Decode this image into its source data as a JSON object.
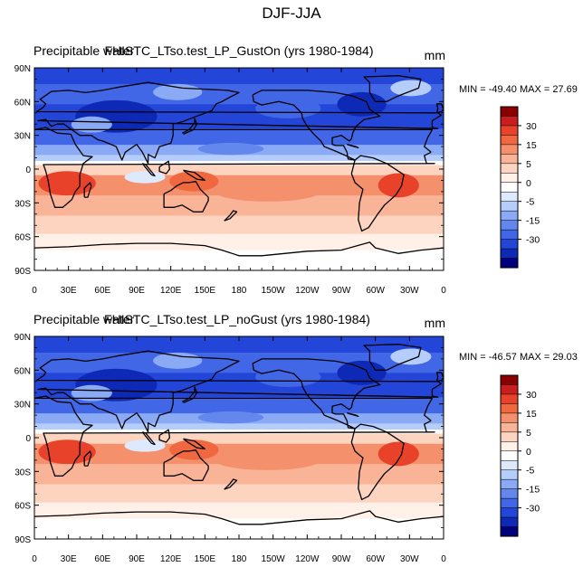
{
  "chart_data": {
    "type": "heatmap",
    "title": "DJF-JJA",
    "colorbar_levels": [
      -35,
      -30,
      -25,
      -20,
      -15,
      -10,
      -5,
      -2,
      0,
      2,
      5,
      10,
      15,
      20,
      25,
      30,
      35
    ],
    "colorbar_labels": [
      "30",
      "15",
      "5",
      "0",
      "-5",
      "-15",
      "-30"
    ],
    "colorbar_colors": [
      "#8b0000",
      "#c81e1e",
      "#e8432a",
      "#f0683f",
      "#f5906c",
      "#f9b498",
      "#fcd4c0",
      "#fff0e8",
      "#ffffff",
      "#dfe9fd",
      "#b5cdfb",
      "#8aaaf5",
      "#6487ee",
      "#4166e6",
      "#2446d8",
      "#0d29b6",
      "#00007d"
    ],
    "x_ticks": [
      "0",
      "30E",
      "60E",
      "90E",
      "120E",
      "150E",
      "180",
      "150W",
      "120W",
      "90W",
      "60W",
      "30W",
      "0"
    ],
    "y_ticks": [
      "90N",
      "60N",
      "30N",
      "0",
      "30S",
      "60S",
      "90S"
    ],
    "x_range": [
      0,
      360
    ],
    "y_range": [
      -90,
      90
    ],
    "panels": [
      {
        "left_title": "Precipitable water",
        "center_title": "FHISTC_LTso.test_LP_GustOn (yrs 1980-1984)",
        "units": "mm",
        "min_max": "MIN = -49.40 MAX =  27.69"
      },
      {
        "left_title": "Precipitable water",
        "center_title": "FHISTC_LTso.test_LP_noGust (yrs 1980-1984)",
        "units": "mm",
        "min_max": "MIN = -46.57 MAX =  29.03"
      }
    ]
  }
}
